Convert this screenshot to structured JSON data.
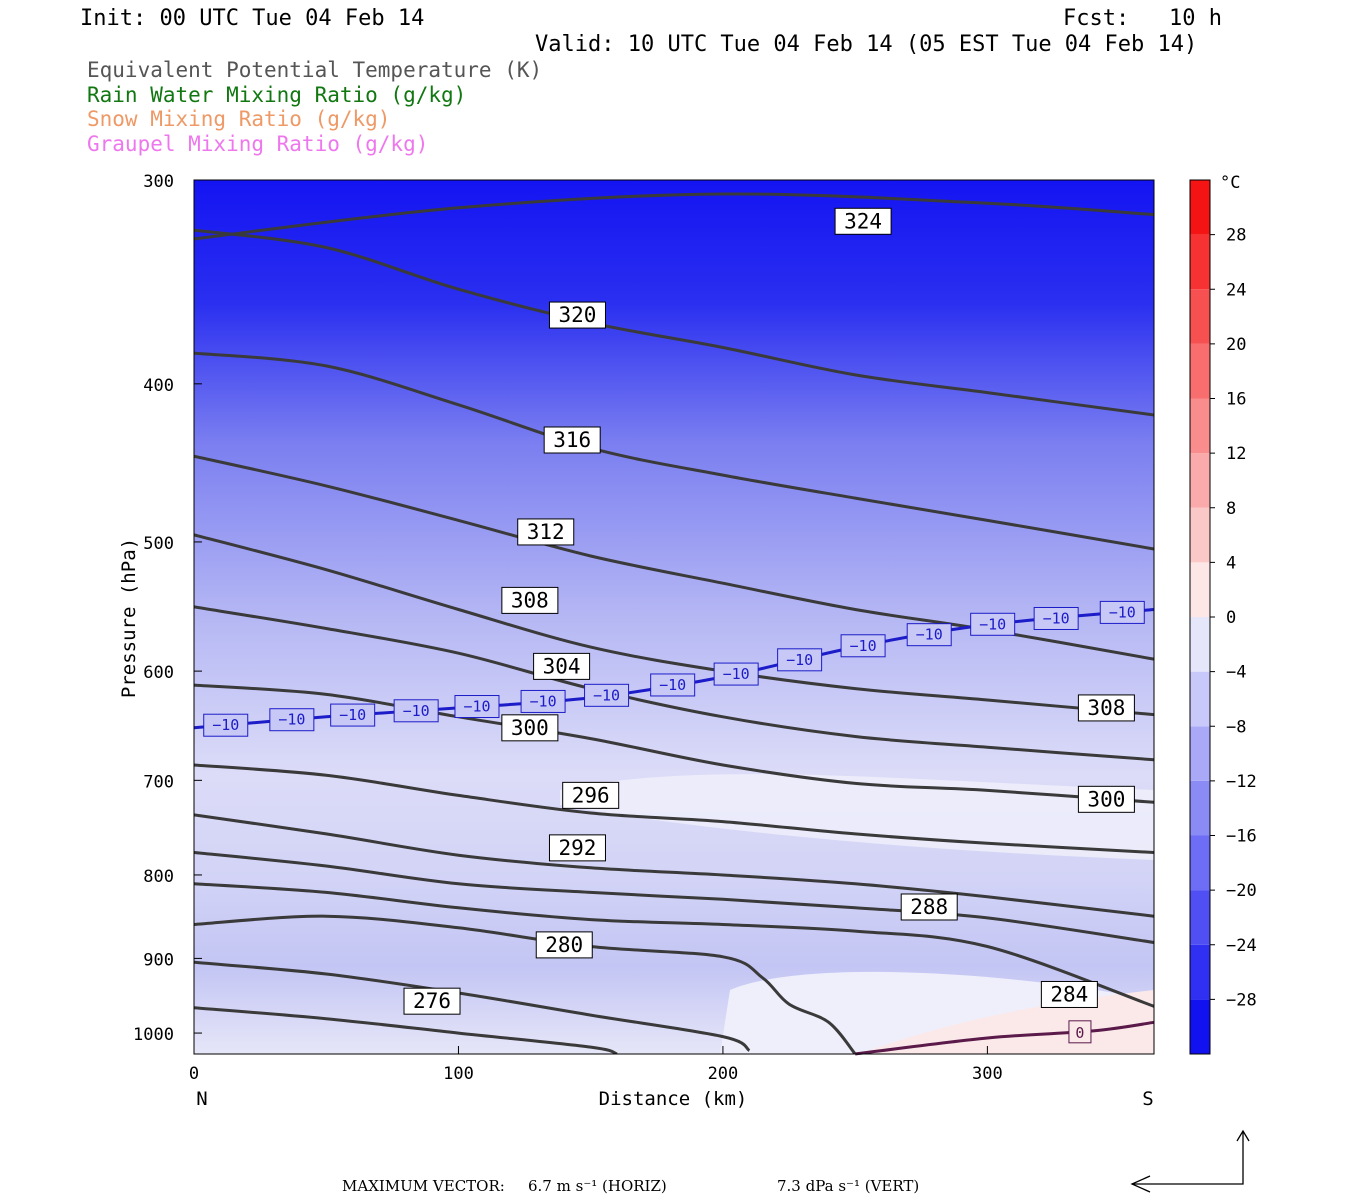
{
  "header": {
    "init": "Init: 00 UTC Tue 04 Feb 14",
    "fcst": "Fcst:   10 h",
    "valid": "Valid: 10 UTC Tue 04 Feb 14 (05 EST Tue 04 Feb 14)"
  },
  "legend": [
    {
      "label": "Equivalent Potential Temperature (K)",
      "color": "#555555"
    },
    {
      "label": "Rain Water Mixing Ratio (g/kg)",
      "color": "#117711"
    },
    {
      "label": "Snow Mixing Ratio (g/kg)",
      "color": "#ee9966"
    },
    {
      "label": "Graupel Mixing Ratio (g/kg)",
      "color": "#ee77ee"
    }
  ],
  "chart_data": {
    "type": "cross-section",
    "ylabel": "Pressure (hPa)",
    "xlabel": "Distance (km)",
    "x_left_label": "N",
    "x_right_label": "S",
    "xlim": [
      0,
      363
    ],
    "ylim": [
      300,
      1030
    ],
    "y_log": true,
    "xticks": [
      0,
      100,
      200,
      300
    ],
    "yticks": [
      300,
      400,
      500,
      600,
      700,
      800,
      900,
      1000
    ],
    "colorbar": {
      "unit": "°C",
      "labels": [
        "28",
        "24",
        "20",
        "16",
        "12",
        "8",
        "4",
        "0",
        "−4",
        "−8",
        "−12",
        "−16",
        "−20",
        "−24",
        "−28"
      ],
      "range": [
        -32,
        32
      ],
      "step": 4
    },
    "theta_e_contours": [
      {
        "label": "324",
        "points": [
          [
            0,
            326
          ],
          [
            100,
            312
          ],
          [
            200,
            306
          ],
          [
            300,
            310
          ],
          [
            363,
            315
          ]
        ]
      },
      {
        "label": "320",
        "points": [
          [
            0,
            322
          ],
          [
            50,
            330
          ],
          [
            100,
            350
          ],
          [
            150,
            367
          ],
          [
            200,
            380
          ],
          [
            250,
            395
          ],
          [
            300,
            405
          ],
          [
            363,
            418
          ]
        ]
      },
      {
        "label": "316",
        "points": [
          [
            0,
            383
          ],
          [
            50,
            390
          ],
          [
            100,
            412
          ],
          [
            150,
            438
          ],
          [
            200,
            455
          ],
          [
            250,
            470
          ],
          [
            300,
            485
          ],
          [
            363,
            505
          ]
        ]
      },
      {
        "label": "312",
        "points": [
          [
            0,
            443
          ],
          [
            50,
            462
          ],
          [
            100,
            485
          ],
          [
            150,
            510
          ],
          [
            200,
            530
          ],
          [
            250,
            550
          ],
          [
            300,
            566
          ],
          [
            363,
            590
          ]
        ]
      },
      {
        "label": "308",
        "points": [
          [
            0,
            495
          ],
          [
            50,
            520
          ],
          [
            100,
            550
          ],
          [
            150,
            580
          ],
          [
            200,
            600
          ],
          [
            250,
            615
          ],
          [
            300,
            625
          ],
          [
            363,
            638
          ]
        ]
      },
      {
        "label": "304",
        "points": [
          [
            0,
            548
          ],
          [
            50,
            565
          ],
          [
            100,
            585
          ],
          [
            150,
            615
          ],
          [
            200,
            640
          ],
          [
            250,
            658
          ],
          [
            300,
            668
          ],
          [
            363,
            680
          ]
        ]
      },
      {
        "label": "300",
        "points": [
          [
            0,
            612
          ],
          [
            50,
            620
          ],
          [
            100,
            640
          ],
          [
            150,
            660
          ],
          [
            200,
            685
          ],
          [
            250,
            703
          ],
          [
            300,
            710
          ],
          [
            363,
            722
          ]
        ]
      },
      {
        "label": "296",
        "points": [
          [
            0,
            685
          ],
          [
            50,
            695
          ],
          [
            100,
            715
          ],
          [
            150,
            733
          ],
          [
            200,
            742
          ],
          [
            250,
            755
          ],
          [
            300,
            765
          ],
          [
            363,
            775
          ]
        ]
      },
      {
        "label": "292",
        "points": [
          [
            0,
            735
          ],
          [
            50,
            755
          ],
          [
            100,
            778
          ],
          [
            150,
            792
          ],
          [
            200,
            800
          ],
          [
            250,
            810
          ],
          [
            300,
            825
          ],
          [
            363,
            848
          ]
        ]
      },
      {
        "label": "288",
        "points": [
          [
            0,
            775
          ],
          [
            50,
            790
          ],
          [
            100,
            810
          ],
          [
            150,
            820
          ],
          [
            200,
            828
          ],
          [
            250,
            838
          ],
          [
            300,
            850
          ],
          [
            363,
            880
          ]
        ]
      },
      {
        "label": "284",
        "points": [
          [
            0,
            810
          ],
          [
            50,
            820
          ],
          [
            100,
            838
          ],
          [
            150,
            852
          ],
          [
            200,
            858
          ],
          [
            250,
            866
          ],
          [
            300,
            885
          ],
          [
            363,
            963
          ]
        ]
      },
      {
        "label": "280",
        "points": [
          [
            0,
            858
          ],
          [
            50,
            848
          ],
          [
            100,
            862
          ],
          [
            150,
            885
          ],
          [
            200,
            898
          ],
          [
            215,
            925
          ],
          [
            225,
            960
          ],
          [
            240,
            985
          ],
          [
            250,
            1030
          ]
        ]
      },
      {
        "label": "276",
        "points": [
          [
            0,
            905
          ],
          [
            50,
            920
          ],
          [
            100,
            945
          ],
          [
            150,
            975
          ],
          [
            200,
            1005
          ],
          [
            210,
            1025
          ]
        ]
      },
      {
        "label": "",
        "points": [
          [
            0,
            965
          ],
          [
            50,
            980
          ],
          [
            100,
            1000
          ],
          [
            150,
            1020
          ],
          [
            160,
            1030
          ]
        ]
      }
    ],
    "theta_e_label_positions": [
      {
        "label": "324",
        "x": 253,
        "p": 318
      },
      {
        "label": "320",
        "x": 145,
        "p": 363
      },
      {
        "label": "316",
        "x": 143,
        "p": 433
      },
      {
        "label": "312",
        "x": 133,
        "p": 493
      },
      {
        "label": "308",
        "x": 127,
        "p": 543
      },
      {
        "label": "304",
        "x": 139,
        "p": 596
      },
      {
        "label": "300",
        "x": 127,
        "p": 650
      },
      {
        "label": "296",
        "x": 150,
        "p": 715
      },
      {
        "label": "292",
        "x": 145,
        "p": 770
      },
      {
        "label": "288",
        "x": 278,
        "p": 837
      },
      {
        "label": "280",
        "x": 140,
        "p": 883
      },
      {
        "label": "276",
        "x": 90,
        "p": 956
      },
      {
        "label": "308",
        "x": 345,
        "p": 632
      },
      {
        "label": "300",
        "x": 345,
        "p": 719
      },
      {
        "label": "284",
        "x": 331,
        "p": 947
      }
    ],
    "isotherm_minus10": {
      "label": "−10",
      "points": [
        [
          0,
          650
        ],
        [
          50,
          640
        ],
        [
          100,
          632
        ],
        [
          150,
          623
        ],
        [
          200,
          605
        ],
        [
          250,
          580
        ],
        [
          300,
          562
        ],
        [
          363,
          550
        ]
      ]
    },
    "isotherm_zero": {
      "label": "0",
      "points": [
        [
          250,
          1030
        ],
        [
          300,
          1007
        ],
        [
          340,
          997
        ],
        [
          363,
          985
        ]
      ]
    },
    "max_vector": {
      "label": "MAXIMUM VECTOR:",
      "horiz": "6.7 m s⁻¹ (HORIZ)",
      "vert": "7.3 dPa s⁻¹ (VERT)"
    }
  }
}
